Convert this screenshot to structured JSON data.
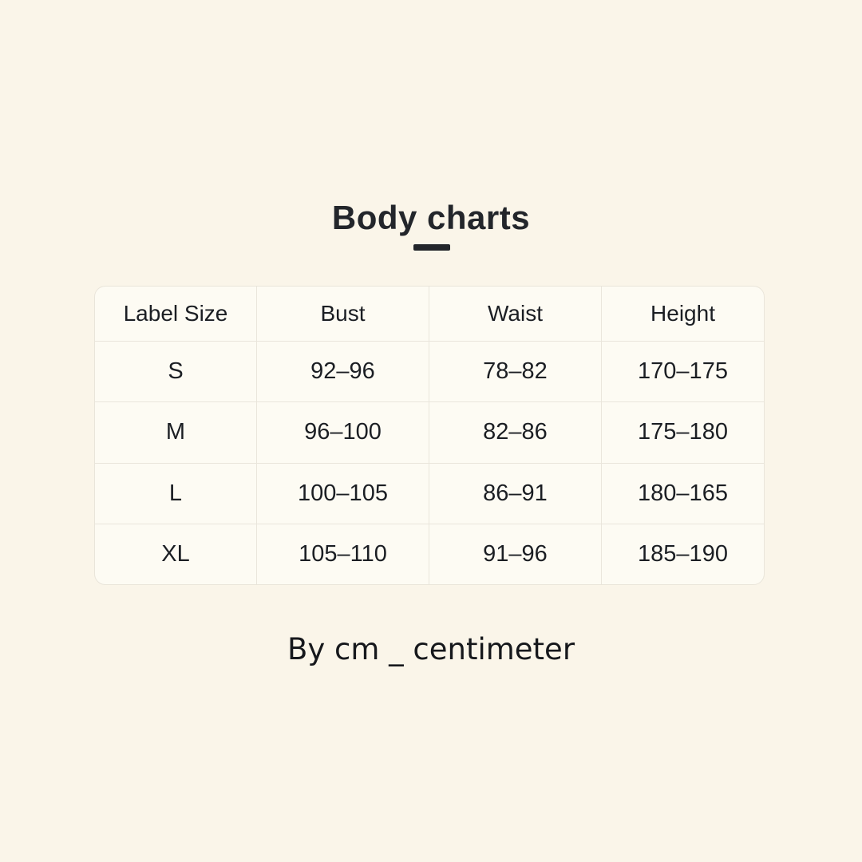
{
  "colors": {
    "page_bg": "#FAF5E9",
    "card_bg": "#FDFBF3",
    "grid_line": "#EAE6DC",
    "text": "#1B1E23",
    "accent_dash": "#23262B"
  },
  "chart_data": {
    "type": "table",
    "title": "Body charts",
    "unit_note": "By cm _ centimeter",
    "columns": [
      "Label Size",
      "Bust",
      "Waist",
      "Height"
    ],
    "rows": [
      [
        "S",
        "92–96",
        "78–82",
        "170–175"
      ],
      [
        "M",
        "96–100",
        "82–86",
        "175–180"
      ],
      [
        "L",
        "100–105",
        "86–91",
        "180–165"
      ],
      [
        "XL",
        "105–110",
        "91–96",
        "185–190"
      ]
    ]
  }
}
